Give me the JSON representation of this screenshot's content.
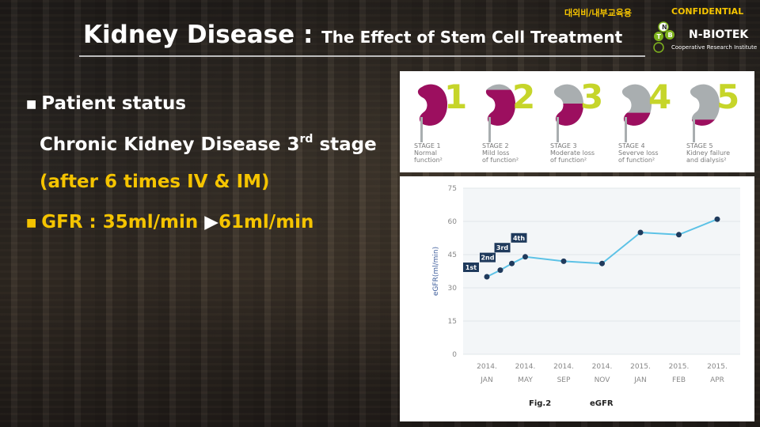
{
  "top_tags": {
    "korean": "대외비/내부교육용",
    "confidential": "CONFIDENTIAL"
  },
  "title": {
    "main": "Kidney Disease : ",
    "sub": "The Effect of Stem Cell Treatment"
  },
  "logo": {
    "name": "N-BIOTEK",
    "subtitle": "Cooperative Research Institute",
    "letters": [
      "N",
      "B",
      "T"
    ]
  },
  "content": {
    "line1": "Patient status",
    "line2_pre": "Chronic Kidney Disease 3",
    "line2_sup": "rd",
    "line2_post": " stage",
    "line3": "(after 6 times IV & IM)",
    "line4_label": "GFR : 35ml/min ",
    "line4_arrow": "▶",
    "line4_value": "61ml/min"
  },
  "stages": [
    {
      "number": "1",
      "label1": "STAGE 1",
      "label2": "Normal",
      "label3": "function²",
      "fill": 1.0
    },
    {
      "number": "2",
      "label1": "STAGE 2",
      "label2": "Mild loss",
      "label3": "of function²",
      "fill": 0.8
    },
    {
      "number": "3",
      "label1": "STAGE 3",
      "label2": "Moderate loss",
      "label3": "of function²",
      "fill": 0.5
    },
    {
      "number": "4",
      "label1": "STAGE 4",
      "label2": "Severve loss",
      "label3": "of function²",
      "fill": 0.3
    },
    {
      "number": "5",
      "label1": "STAGE 5",
      "label2": "Kidney failure",
      "label3": "and dialysis²",
      "fill": 0.15
    }
  ],
  "colors": {
    "accent": "#f5c400",
    "kidney": "#9c0f5f",
    "kidney_gray": "#a9aeb0",
    "stage_number": "#c6d52a",
    "line": "#5cc2e6"
  },
  "chart_data": {
    "type": "line",
    "ylabel": "eGFR(ml/min)",
    "ylim": [
      0,
      75
    ],
    "yticks": [
      0,
      15,
      30,
      45,
      60,
      75
    ],
    "xtick_labels": [
      {
        "line1": "2014.",
        "line2": "JAN",
        "x": 0
      },
      {
        "line1": "2014.",
        "line2": "MAY",
        "x": 1
      },
      {
        "line1": "2014.",
        "line2": "SEP",
        "x": 2
      },
      {
        "line1": "2014.",
        "line2": "NOV",
        "x": 3
      },
      {
        "line1": "2015.",
        "line2": "JAN",
        "x": 4
      },
      {
        "line1": "2015.",
        "line2": "FEB",
        "x": 5
      },
      {
        "line1": "2015.",
        "line2": "APR",
        "x": 6
      }
    ],
    "points": [
      {
        "x": 0.0,
        "y": 35
      },
      {
        "x": 0.35,
        "y": 38
      },
      {
        "x": 0.65,
        "y": 41
      },
      {
        "x": 1.0,
        "y": 44
      },
      {
        "x": 2.0,
        "y": 42
      },
      {
        "x": 3.0,
        "y": 41
      },
      {
        "x": 4.0,
        "y": 55
      },
      {
        "x": 5.0,
        "y": 54
      },
      {
        "x": 6.0,
        "y": 61
      }
    ],
    "annotations": [
      {
        "text": "1st",
        "point": 0
      },
      {
        "text": "2nd",
        "point": 1
      },
      {
        "text": "3rd",
        "point": 2
      },
      {
        "text": "4th",
        "point": 3
      }
    ],
    "grid": true
  },
  "captions": {
    "fig": "Fig.2",
    "name": "eGFR"
  }
}
